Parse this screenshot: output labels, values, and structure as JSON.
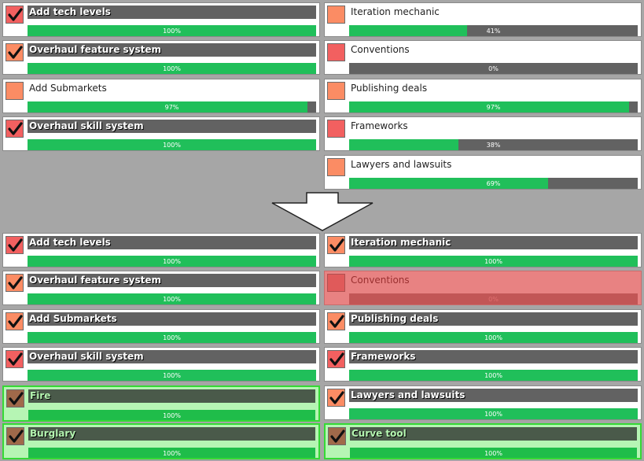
{
  "colors": {
    "background": "#a6a6a6",
    "progress_fill": "#20bf5a",
    "progress_track": "#626262",
    "icon_red": "#f26060",
    "icon_orange": "#fb8c64",
    "icon_brown": "#a0694a",
    "new_task_highlight": "#b6f5b4",
    "cancelled": "#e88282"
  },
  "before": {
    "left": [
      {
        "title": "Add tech levels",
        "done": true,
        "percent_label": "100%",
        "progress": 1.0,
        "icon_color": "#f26060"
      },
      {
        "title": "Overhaul feature system",
        "done": true,
        "percent_label": "100%",
        "progress": 1.0,
        "icon_color": "#fb8c64"
      },
      {
        "title": "Add Submarkets",
        "done": false,
        "percent_label": "97%",
        "progress": 0.97,
        "icon_color": "#fb8c64"
      },
      {
        "title": "Overhaul skill system",
        "done": true,
        "percent_label": "100%",
        "progress": 1.0,
        "icon_color": "#f26060"
      }
    ],
    "right": [
      {
        "title": "Iteration mechanic",
        "done": false,
        "percent_label": "41%",
        "progress": 0.41,
        "icon_color": "#fb8c64"
      },
      {
        "title": "Conventions",
        "done": false,
        "percent_label": "0%",
        "progress": 0.0,
        "icon_color": "#f26060"
      },
      {
        "title": "Publishing deals",
        "done": false,
        "percent_label": "97%",
        "progress": 0.97,
        "icon_color": "#fb8c64"
      },
      {
        "title": "Frameworks",
        "done": false,
        "percent_label": "38%",
        "progress": 0.38,
        "icon_color": "#f26060"
      },
      {
        "title": "Lawyers and lawsuits",
        "done": false,
        "percent_label": "69%",
        "progress": 0.69,
        "icon_color": "#fb8c64"
      }
    ]
  },
  "after": {
    "left": [
      {
        "title": "Add tech levels",
        "done": true,
        "percent_label": "100%",
        "progress": 1.0,
        "icon_color": "#f26060",
        "state": "normal"
      },
      {
        "title": "Overhaul feature system",
        "done": true,
        "percent_label": "100%",
        "progress": 1.0,
        "icon_color": "#fb8c64",
        "state": "normal"
      },
      {
        "title": "Add Submarkets",
        "done": true,
        "percent_label": "100%",
        "progress": 1.0,
        "icon_color": "#fb8c64",
        "state": "normal"
      },
      {
        "title": "Overhaul skill system",
        "done": true,
        "percent_label": "100%",
        "progress": 1.0,
        "icon_color": "#f26060",
        "state": "normal"
      },
      {
        "title": "Fire",
        "done": true,
        "percent_label": "100%",
        "progress": 1.0,
        "icon_color": "#a0694a",
        "state": "new"
      },
      {
        "title": "Burglary",
        "done": true,
        "percent_label": "100%",
        "progress": 1.0,
        "icon_color": "#a0694a",
        "state": "new"
      }
    ],
    "right": [
      {
        "title": "Iteration mechanic",
        "done": true,
        "percent_label": "100%",
        "progress": 1.0,
        "icon_color": "#fb8c64",
        "state": "normal"
      },
      {
        "title": "Conventions",
        "done": false,
        "percent_label": "0%",
        "progress": 0.0,
        "icon_color": "#e05a5a",
        "state": "cancelled"
      },
      {
        "title": "Publishing deals",
        "done": true,
        "percent_label": "100%",
        "progress": 1.0,
        "icon_color": "#fb8c64",
        "state": "normal"
      },
      {
        "title": "Frameworks",
        "done": true,
        "percent_label": "100%",
        "progress": 1.0,
        "icon_color": "#f26060",
        "state": "normal"
      },
      {
        "title": "Lawyers and lawsuits",
        "done": true,
        "percent_label": "100%",
        "progress": 1.0,
        "icon_color": "#fb8c64",
        "state": "normal"
      },
      {
        "title": "Curve tool",
        "done": true,
        "percent_label": "100%",
        "progress": 1.0,
        "icon_color": "#a0694a",
        "state": "new"
      }
    ]
  },
  "arrow_icon": "arrow-down-icon",
  "check_icon": "checkmark-icon"
}
